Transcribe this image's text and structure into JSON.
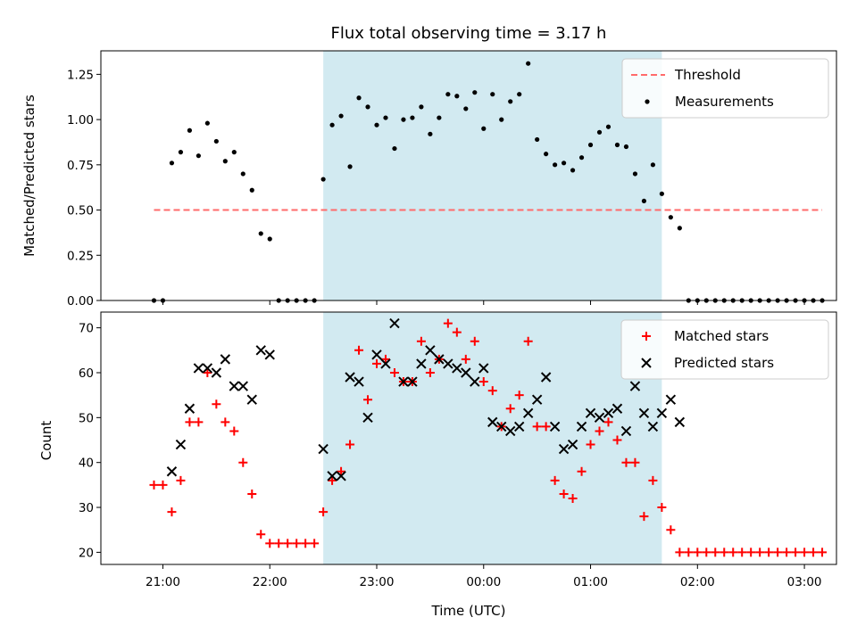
{
  "colors": {
    "shade": "#add8e6",
    "threshold": "#ff6b6b",
    "matched": "#ff0000",
    "predicted": "#000000",
    "points": "#000000"
  },
  "chart_data": [
    {
      "type": "scatter",
      "title": "Flux total observing time = 3.17 h",
      "xlabel": "",
      "ylabel": "Matched/Predicted stars",
      "ylim": [
        0,
        1.38
      ],
      "xlim_hours": [
        20.42,
        27.3
      ],
      "x_ticks": [
        "21:00",
        "22:00",
        "23:00",
        "00:00",
        "01:00",
        "02:00",
        "03:00"
      ],
      "y_ticks": [
        "0.00",
        "0.25",
        "0.50",
        "0.75",
        "1.00",
        "1.25"
      ],
      "shaded_region": [
        "22:30",
        "01:40"
      ],
      "legend": "upper right",
      "series": [
        {
          "name": "Threshold",
          "style": "dashed-line",
          "x": [
            "20:55",
            "03:10"
          ],
          "values": [
            0.5,
            0.5
          ]
        },
        {
          "name": "Measurements",
          "style": "dot",
          "x": [
            "20:55",
            "21:00",
            "21:05",
            "21:10",
            "21:15",
            "21:20",
            "21:25",
            "21:30",
            "21:35",
            "21:40",
            "21:45",
            "21:50",
            "21:55",
            "22:00",
            "22:05",
            "22:10",
            "22:15",
            "22:20",
            "22:25",
            "22:30",
            "22:35",
            "22:40",
            "22:45",
            "22:50",
            "22:55",
            "23:00",
            "23:05",
            "23:10",
            "23:15",
            "23:20",
            "23:25",
            "23:30",
            "23:35",
            "23:40",
            "23:45",
            "23:50",
            "23:55",
            "00:00",
            "00:05",
            "00:10",
            "00:15",
            "00:20",
            "00:25",
            "00:30",
            "00:35",
            "00:40",
            "00:45",
            "00:50",
            "00:55",
            "01:00",
            "01:05",
            "01:10",
            "01:15",
            "01:20",
            "01:25",
            "01:30",
            "01:35",
            "01:40",
            "01:45",
            "01:50",
            "01:55",
            "02:00",
            "02:05",
            "02:10",
            "02:15",
            "02:20",
            "02:25",
            "02:30",
            "02:35",
            "02:40",
            "02:45",
            "02:50",
            "02:55",
            "03:00",
            "03:05",
            "03:10"
          ],
          "values": [
            0.0,
            0.0,
            0.76,
            0.82,
            0.94,
            0.8,
            0.98,
            0.88,
            0.77,
            0.82,
            0.7,
            0.61,
            0.37,
            0.34,
            0.0,
            0.0,
            0.0,
            0.0,
            0.0,
            0.67,
            0.97,
            1.02,
            0.74,
            1.12,
            1.07,
            0.97,
            1.01,
            0.84,
            1.0,
            1.01,
            1.07,
            0.92,
            1.01,
            1.14,
            1.13,
            1.06,
            1.15,
            0.95,
            1.14,
            1.0,
            1.1,
            1.14,
            1.31,
            0.89,
            0.81,
            0.75,
            0.76,
            0.72,
            0.79,
            0.86,
            0.93,
            0.96,
            0.86,
            0.85,
            0.7,
            0.55,
            0.75,
            0.59,
            0.46,
            0.4,
            0.0,
            0.0,
            0.0,
            0.0,
            0.0,
            0.0,
            0.0,
            0.0,
            0.0,
            0.0,
            0.0,
            0.0,
            0.0,
            0.0,
            0.0,
            0.0
          ]
        }
      ]
    },
    {
      "type": "scatter",
      "title": "",
      "xlabel": "Time (UTC)",
      "ylabel": "Count",
      "ylim": [
        17.3,
        73.5
      ],
      "xlim_hours": [
        20.42,
        27.3
      ],
      "x_ticks": [
        "21:00",
        "22:00",
        "23:00",
        "00:00",
        "01:00",
        "02:00",
        "03:00"
      ],
      "y_ticks": [
        "20",
        "30",
        "40",
        "50",
        "60",
        "70"
      ],
      "shaded_region": [
        "22:30",
        "01:40"
      ],
      "legend": "upper right",
      "series": [
        {
          "name": "Matched stars",
          "style": "plus",
          "x": [
            "20:55",
            "21:00",
            "21:05",
            "21:10",
            "21:15",
            "21:20",
            "21:25",
            "21:30",
            "21:35",
            "21:40",
            "21:45",
            "21:50",
            "21:55",
            "22:00",
            "22:05",
            "22:10",
            "22:15",
            "22:20",
            "22:25",
            "22:30",
            "22:35",
            "22:40",
            "22:45",
            "22:50",
            "22:55",
            "23:00",
            "23:05",
            "23:10",
            "23:15",
            "23:20",
            "23:25",
            "23:30",
            "23:35",
            "23:40",
            "23:45",
            "23:50",
            "23:55",
            "00:00",
            "00:05",
            "00:10",
            "00:15",
            "00:20",
            "00:25",
            "00:30",
            "00:35",
            "00:40",
            "00:45",
            "00:50",
            "00:55",
            "01:00",
            "01:05",
            "01:10",
            "01:15",
            "01:20",
            "01:25",
            "01:30",
            "01:35",
            "01:40",
            "01:45",
            "01:50",
            "01:55",
            "02:00",
            "02:05",
            "02:10",
            "02:15",
            "02:20",
            "02:25",
            "02:30",
            "02:35",
            "02:40",
            "02:45",
            "02:50",
            "02:55",
            "03:00",
            "03:05",
            "03:10"
          ],
          "values": [
            35,
            35,
            29,
            36,
            49,
            49,
            60,
            53,
            49,
            47,
            40,
            33,
            24,
            22,
            22,
            22,
            22,
            22,
            22,
            29,
            36,
            38,
            44,
            65,
            54,
            62,
            63,
            60,
            58,
            58,
            67,
            60,
            63,
            71,
            69,
            63,
            67,
            58,
            56,
            48,
            52,
            55,
            67,
            48,
            48,
            36,
            33,
            32,
            38,
            44,
            47,
            49,
            45,
            40,
            40,
            28,
            36,
            30,
            25,
            20,
            20,
            20,
            20,
            20,
            20,
            20,
            20,
            20,
            20,
            20,
            20,
            20,
            20,
            20,
            20,
            20
          ]
        },
        {
          "name": "Predicted stars",
          "style": "x",
          "x": [
            "21:05",
            "21:10",
            "21:15",
            "21:20",
            "21:25",
            "21:30",
            "21:35",
            "21:40",
            "21:45",
            "21:50",
            "21:55",
            "22:00",
            "22:30",
            "22:35",
            "22:40",
            "22:45",
            "22:50",
            "22:55",
            "23:00",
            "23:05",
            "23:10",
            "23:15",
            "23:20",
            "23:25",
            "23:30",
            "23:35",
            "23:40",
            "23:45",
            "23:50",
            "23:55",
            "00:00",
            "00:05",
            "00:10",
            "00:15",
            "00:20",
            "00:25",
            "00:30",
            "00:35",
            "00:40",
            "00:45",
            "00:50",
            "00:55",
            "01:00",
            "01:05",
            "01:10",
            "01:15",
            "01:20",
            "01:25",
            "01:30",
            "01:35",
            "01:40",
            "01:45",
            "01:50"
          ],
          "values": [
            38,
            44,
            52,
            61,
            61,
            60,
            63,
            57,
            57,
            54,
            65,
            64,
            43,
            37,
            37,
            59,
            58,
            50,
            64,
            62,
            71,
            58,
            58,
            62,
            65,
            63,
            62,
            61,
            60,
            58,
            61,
            49,
            48,
            47,
            48,
            51,
            54,
            59,
            48,
            43,
            44,
            48,
            51,
            50,
            51,
            52,
            47,
            57,
            51,
            48,
            51,
            54,
            49
          ]
        }
      ]
    }
  ]
}
